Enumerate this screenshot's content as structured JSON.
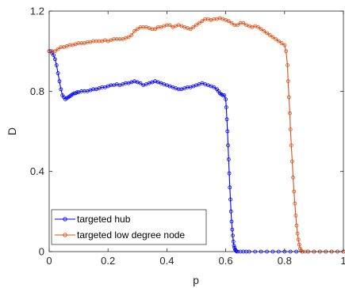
{
  "chart_data": {
    "type": "line",
    "xlabel": "p",
    "ylabel": "D",
    "xlim": [
      0,
      1
    ],
    "ylim": [
      0,
      1.2
    ],
    "xticks": [
      0,
      0.2,
      0.4,
      0.6,
      0.8,
      1
    ],
    "yticks": [
      0,
      0.4,
      0.8,
      1.2
    ],
    "xtick_labels": [
      "0",
      "0.2",
      "0.4",
      "0.6",
      "0.8",
      "1"
    ],
    "ytick_labels": [
      "0",
      "0.4",
      "0.8",
      "1.2"
    ],
    "grid": false,
    "legend_position": "bottom-left",
    "series": [
      {
        "name": "targeted hub",
        "color": "#0000ff",
        "marker": "circle",
        "x": [
          0,
          0.005,
          0.01,
          0.015,
          0.02,
          0.025,
          0.03,
          0.035,
          0.04,
          0.045,
          0.05,
          0.055,
          0.06,
          0.065,
          0.07,
          0.075,
          0.08,
          0.085,
          0.09,
          0.095,
          0.1,
          0.11,
          0.12,
          0.13,
          0.14,
          0.15,
          0.16,
          0.17,
          0.18,
          0.19,
          0.2,
          0.21,
          0.22,
          0.23,
          0.24,
          0.25,
          0.26,
          0.27,
          0.28,
          0.29,
          0.3,
          0.31,
          0.32,
          0.33,
          0.34,
          0.35,
          0.36,
          0.37,
          0.38,
          0.39,
          0.4,
          0.41,
          0.42,
          0.43,
          0.44,
          0.45,
          0.46,
          0.47,
          0.48,
          0.49,
          0.5,
          0.51,
          0.52,
          0.53,
          0.54,
          0.55,
          0.56,
          0.57,
          0.575,
          0.58,
          0.585,
          0.59,
          0.595,
          0.6,
          0.602,
          0.604,
          0.606,
          0.608,
          0.61,
          0.612,
          0.614,
          0.616,
          0.618,
          0.62,
          0.622,
          0.624,
          0.626,
          0.628,
          0.63,
          0.632,
          0.634,
          0.636,
          0.64,
          0.65,
          0.66,
          0.67,
          0.68,
          0.7,
          0.72,
          0.74,
          0.76,
          0.78,
          0.8,
          0.82,
          0.84,
          0.86,
          0.88,
          0.9,
          0.92,
          0.94,
          0.96,
          0.98,
          1.0
        ],
        "y": [
          1.0,
          1.0,
          0.99,
          0.98,
          0.96,
          0.93,
          0.89,
          0.85,
          0.81,
          0.78,
          0.77,
          0.76,
          0.765,
          0.77,
          0.775,
          0.78,
          0.785,
          0.79,
          0.79,
          0.795,
          0.795,
          0.8,
          0.8,
          0.8,
          0.805,
          0.81,
          0.81,
          0.815,
          0.82,
          0.82,
          0.825,
          0.83,
          0.83,
          0.835,
          0.83,
          0.835,
          0.84,
          0.84,
          0.845,
          0.85,
          0.845,
          0.84,
          0.83,
          0.835,
          0.84,
          0.845,
          0.85,
          0.845,
          0.84,
          0.835,
          0.83,
          0.825,
          0.82,
          0.815,
          0.81,
          0.81,
          0.815,
          0.82,
          0.82,
          0.825,
          0.83,
          0.835,
          0.84,
          0.835,
          0.83,
          0.825,
          0.82,
          0.81,
          0.8,
          0.79,
          0.785,
          0.78,
          0.78,
          0.76,
          0.72,
          0.66,
          0.6,
          0.53,
          0.46,
          0.39,
          0.32,
          0.26,
          0.2,
          0.15,
          0.11,
          0.08,
          0.05,
          0.03,
          0.02,
          0.01,
          0.005,
          0.002,
          0,
          0,
          0,
          0,
          0,
          0,
          0,
          0,
          0,
          0,
          0,
          0,
          0,
          0,
          0,
          0,
          0,
          0,
          0,
          0,
          0
        ]
      },
      {
        "name": "targeted low degree node",
        "color": "#d95319",
        "marker": "circle",
        "x": [
          0,
          0.01,
          0.02,
          0.03,
          0.04,
          0.05,
          0.06,
          0.07,
          0.08,
          0.09,
          0.1,
          0.11,
          0.12,
          0.13,
          0.14,
          0.15,
          0.16,
          0.17,
          0.18,
          0.19,
          0.2,
          0.21,
          0.22,
          0.23,
          0.24,
          0.25,
          0.26,
          0.27,
          0.28,
          0.29,
          0.3,
          0.31,
          0.32,
          0.33,
          0.34,
          0.35,
          0.36,
          0.37,
          0.38,
          0.39,
          0.4,
          0.41,
          0.42,
          0.43,
          0.44,
          0.45,
          0.46,
          0.47,
          0.48,
          0.49,
          0.5,
          0.51,
          0.52,
          0.53,
          0.54,
          0.55,
          0.56,
          0.57,
          0.58,
          0.59,
          0.6,
          0.61,
          0.62,
          0.63,
          0.64,
          0.65,
          0.66,
          0.67,
          0.68,
          0.69,
          0.7,
          0.71,
          0.72,
          0.73,
          0.74,
          0.75,
          0.76,
          0.77,
          0.78,
          0.79,
          0.8,
          0.805,
          0.81,
          0.812,
          0.815,
          0.818,
          0.82,
          0.823,
          0.826,
          0.829,
          0.832,
          0.835,
          0.838,
          0.841,
          0.844,
          0.847,
          0.85,
          0.853,
          0.856,
          0.86,
          0.87,
          0.88,
          0.9,
          0.92,
          0.94,
          0.96,
          0.98,
          1.0
        ],
        "y": [
          1.0,
          1.0,
          1.0,
          1.01,
          1.02,
          1.02,
          1.025,
          1.03,
          1.03,
          1.035,
          1.04,
          1.04,
          1.04,
          1.045,
          1.045,
          1.05,
          1.05,
          1.05,
          1.05,
          1.055,
          1.05,
          1.055,
          1.06,
          1.06,
          1.06,
          1.06,
          1.065,
          1.07,
          1.08,
          1.1,
          1.11,
          1.12,
          1.12,
          1.12,
          1.115,
          1.11,
          1.11,
          1.12,
          1.12,
          1.125,
          1.13,
          1.13,
          1.12,
          1.125,
          1.13,
          1.125,
          1.12,
          1.115,
          1.11,
          1.12,
          1.13,
          1.14,
          1.15,
          1.16,
          1.16,
          1.155,
          1.16,
          1.16,
          1.165,
          1.16,
          1.155,
          1.15,
          1.14,
          1.13,
          1.13,
          1.14,
          1.14,
          1.13,
          1.125,
          1.12,
          1.125,
          1.12,
          1.11,
          1.1,
          1.09,
          1.08,
          1.07,
          1.06,
          1.05,
          1.04,
          1.03,
          1.0,
          0.93,
          0.85,
          0.77,
          0.69,
          0.61,
          0.53,
          0.45,
          0.37,
          0.3,
          0.24,
          0.18,
          0.13,
          0.09,
          0.06,
          0.035,
          0.015,
          0.005,
          0,
          0,
          0,
          0,
          0,
          0,
          0,
          0,
          0
        ]
      }
    ]
  }
}
